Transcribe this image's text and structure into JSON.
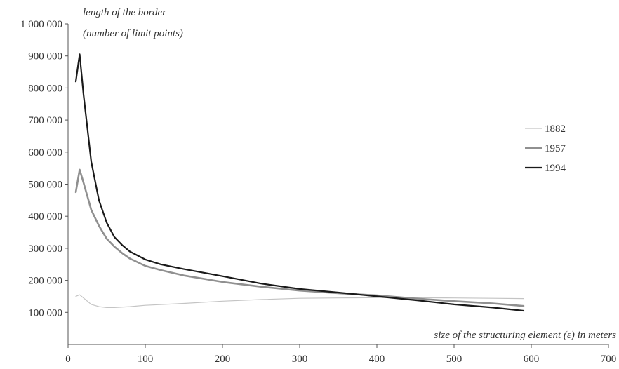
{
  "chart_data": {
    "type": "line",
    "title": "",
    "xlabel": "size of the structuring element (ε) in meters",
    "ylabel_lines": [
      "length of the border",
      "(number of limit points)"
    ],
    "xlim": [
      0,
      700
    ],
    "ylim": [
      0,
      1000000
    ],
    "x_ticks": [
      0,
      100,
      200,
      300,
      400,
      500,
      600,
      700
    ],
    "x_tick_labels": [
      "0",
      "100",
      "200",
      "300",
      "400",
      "500",
      "600",
      "700"
    ],
    "y_ticks": [
      100000,
      200000,
      300000,
      400000,
      500000,
      600000,
      700000,
      800000,
      900000,
      1000000
    ],
    "y_tick_labels": [
      "100 000",
      "200 000",
      "300 000",
      "400 000",
      "500 000",
      "600 000",
      "700 000",
      "800 000",
      "900 000",
      "1 000 000"
    ],
    "grid": false,
    "legend_position": "right",
    "series": [
      {
        "name": "1882",
        "color": "#c4c4c4",
        "x": [
          10,
          15,
          20,
          30,
          40,
          50,
          60,
          80,
          100,
          150,
          200,
          250,
          300,
          350,
          400,
          450,
          500,
          550,
          590
        ],
        "y": [
          150000,
          155000,
          145000,
          125000,
          118000,
          115000,
          115000,
          118000,
          122000,
          128000,
          135000,
          140000,
          144000,
          145000,
          146000,
          146000,
          145000,
          144000,
          143000
        ]
      },
      {
        "name": "1957",
        "color": "#909090",
        "x": [
          10,
          15,
          20,
          30,
          40,
          50,
          60,
          70,
          80,
          100,
          120,
          150,
          200,
          250,
          300,
          350,
          400,
          450,
          500,
          550,
          590
        ],
        "y": [
          475000,
          545000,
          505000,
          420000,
          370000,
          330000,
          305000,
          285000,
          268000,
          245000,
          232000,
          215000,
          195000,
          180000,
          168000,
          160000,
          153000,
          143000,
          135000,
          128000,
          120000
        ]
      },
      {
        "name": "1994",
        "color": "#1a1a1a",
        "x": [
          10,
          15,
          20,
          30,
          40,
          50,
          60,
          70,
          80,
          100,
          120,
          150,
          200,
          250,
          300,
          350,
          400,
          450,
          500,
          550,
          590
        ],
        "y": [
          820000,
          905000,
          780000,
          570000,
          450000,
          380000,
          335000,
          310000,
          290000,
          265000,
          250000,
          235000,
          213000,
          190000,
          173000,
          162000,
          150000,
          138000,
          125000,
          115000,
          105000
        ]
      }
    ]
  }
}
